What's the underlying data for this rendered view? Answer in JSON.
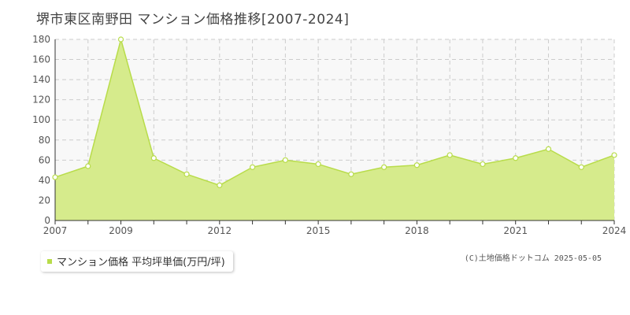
{
  "title": "堺市東区南野田 マンション価格推移[2007-2024]",
  "legend": {
    "label": "マンション価格 平均坪単価(万円/坪)"
  },
  "credit": "(C)土地価格ドットコム 2025-05-05",
  "colors": {
    "fill": "#d6eb8c",
    "line": "#b8dc4a",
    "marker_fill": "#ffffff",
    "legend_swatch": "#b8dc4a",
    "grid": "#cccccc",
    "plot_bg": "#f8f8f8"
  },
  "chart_data": {
    "type": "area",
    "x": [
      2007,
      2008,
      2009,
      2010,
      2011,
      2012,
      2013,
      2014,
      2015,
      2016,
      2017,
      2018,
      2019,
      2020,
      2021,
      2022,
      2023,
      2024
    ],
    "series": [
      {
        "name": "マンション価格 平均坪単価(万円/坪)",
        "values": [
          43,
          54,
          180,
          62,
          46,
          35,
          53,
          60,
          56,
          46,
          53,
          55,
          65,
          56,
          62,
          71,
          53,
          65
        ]
      }
    ],
    "xlim": [
      2007,
      2024
    ],
    "ylim": [
      0,
      180
    ],
    "y_ticks": [
      0,
      20,
      40,
      60,
      80,
      100,
      120,
      140,
      160,
      180
    ],
    "x_tick_labels": [
      2007,
      2009,
      2012,
      2015,
      2018,
      2021,
      2024
    ],
    "grid": true
  }
}
